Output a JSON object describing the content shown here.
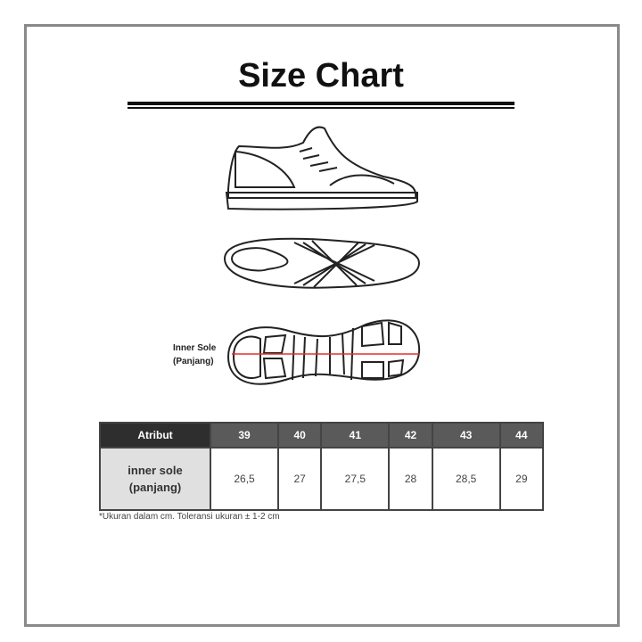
{
  "title": "Size Chart",
  "diagram": {
    "inner_sole_label_line1": "Inner Sole",
    "inner_sole_label_line2": "(Panjang)",
    "measure_line_color": "#e03030"
  },
  "table": {
    "header_label": "Atribut",
    "sizes": [
      "39",
      "40",
      "41",
      "42",
      "43",
      "44"
    ],
    "row_label_line1": "inner sole",
    "row_label_line2": "(panjang)",
    "values": [
      "26,5",
      "27",
      "27,5",
      "28",
      "28,5",
      "29"
    ]
  },
  "note": "*Ukuran dalam cm. Toleransi ukuran ± 1-2 cm"
}
